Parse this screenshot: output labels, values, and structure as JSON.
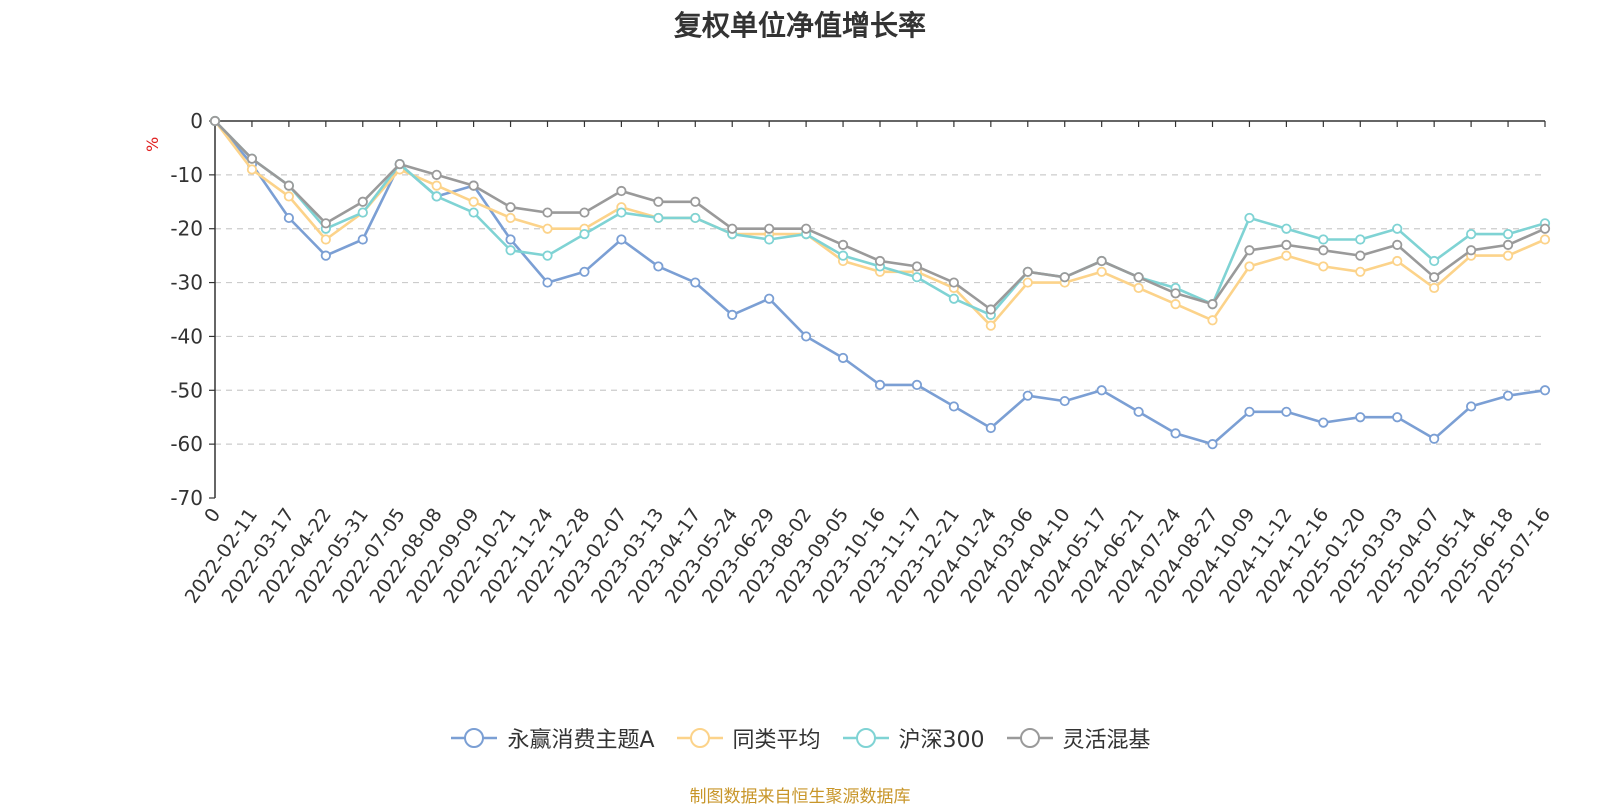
{
  "title": "复权单位净值增长率",
  "footer": "制图数据来自恒生聚源数据库",
  "chart_data": {
    "type": "line",
    "title": "复权单位净值增长率",
    "ylabel": "%",
    "ylim": [
      -70,
      0
    ],
    "yticks": [
      0,
      -10,
      -20,
      -30,
      -40,
      -50,
      -60,
      -70
    ],
    "grid": true,
    "legend_position": "bottom",
    "xtick_labels": [
      "0",
      "2022-02-11",
      "2022-03-17",
      "2022-04-22",
      "2022-05-31",
      "2022-07-05",
      "2022-08-08",
      "2022-09-09",
      "2022-10-21",
      "2022-11-24",
      "2022-12-28",
      "2023-02-07",
      "2023-03-13",
      "2023-04-17",
      "2023-05-24",
      "2023-06-29",
      "2023-08-02",
      "2023-09-05",
      "2023-10-16",
      "2023-11-17",
      "2023-12-21",
      "2024-01-24",
      "2024-03-06",
      "2024-04-10",
      "2024-05-17",
      "2024-06-21",
      "2024-07-24",
      "2024-08-27",
      "2024-10-09",
      "2024-11-12",
      "2024-12-16",
      "2025-01-20",
      "2025-03-03",
      "2025-04-07",
      "2025-05-14",
      "2025-06-18",
      "2025-07-16"
    ],
    "x": [
      0,
      1,
      2,
      3,
      4,
      5,
      6,
      7,
      8,
      9,
      10,
      11,
      12,
      13,
      14,
      15,
      16,
      17,
      18,
      19,
      20,
      21,
      22,
      23,
      24,
      25,
      26,
      27,
      28,
      29,
      30,
      31,
      32,
      33,
      34,
      35,
      36
    ],
    "series": [
      {
        "name": "永赢消费主题A",
        "color": "#7b9fd4",
        "values": [
          0,
          -8,
          -18,
          -25,
          -22,
          -8,
          -14,
          -12,
          -22,
          -30,
          -28,
          -22,
          -27,
          -30,
          -36,
          -33,
          -40,
          -44,
          -49,
          -49,
          -53,
          -57,
          -51,
          -52,
          -50,
          -54,
          -58,
          -60,
          -54,
          -54,
          -56,
          -55,
          -55,
          -59,
          -53,
          -51,
          -50
        ]
      },
      {
        "name": "同类平均",
        "color": "#fcd38a",
        "values": [
          0,
          -9,
          -14,
          -22,
          -17,
          -9,
          -12,
          -15,
          -18,
          -20,
          -20,
          -16,
          -18,
          -18,
          -21,
          -21,
          -21,
          -26,
          -28,
          -28,
          -31,
          -38,
          -30,
          -30,
          -28,
          -31,
          -34,
          -37,
          -27,
          -25,
          -27,
          -28,
          -26,
          -31,
          -25,
          -25,
          -22
        ]
      },
      {
        "name": "沪深300",
        "color": "#7fd3d4",
        "values": [
          0,
          -7,
          -12,
          -20,
          -17,
          -8,
          -14,
          -17,
          -24,
          -25,
          -21,
          -17,
          -18,
          -18,
          -21,
          -22,
          -21,
          -25,
          -27,
          -29,
          -33,
          -36,
          -28,
          -29,
          -26,
          -29,
          -31,
          -34,
          -18,
          -20,
          -22,
          -22,
          -20,
          -26,
          -21,
          -21,
          -19
        ]
      },
      {
        "name": "灵活混基",
        "color": "#9a9a9a",
        "values": [
          0,
          -7,
          -12,
          -19,
          -15,
          -8,
          -10,
          -12,
          -16,
          -17,
          -17,
          -13,
          -15,
          -15,
          -20,
          -20,
          -20,
          -23,
          -26,
          -27,
          -30,
          -35,
          -28,
          -29,
          -26,
          -29,
          -32,
          -34,
          -24,
          -23,
          -24,
          -25,
          -23,
          -29,
          -24,
          -23,
          -20
        ]
      }
    ]
  }
}
